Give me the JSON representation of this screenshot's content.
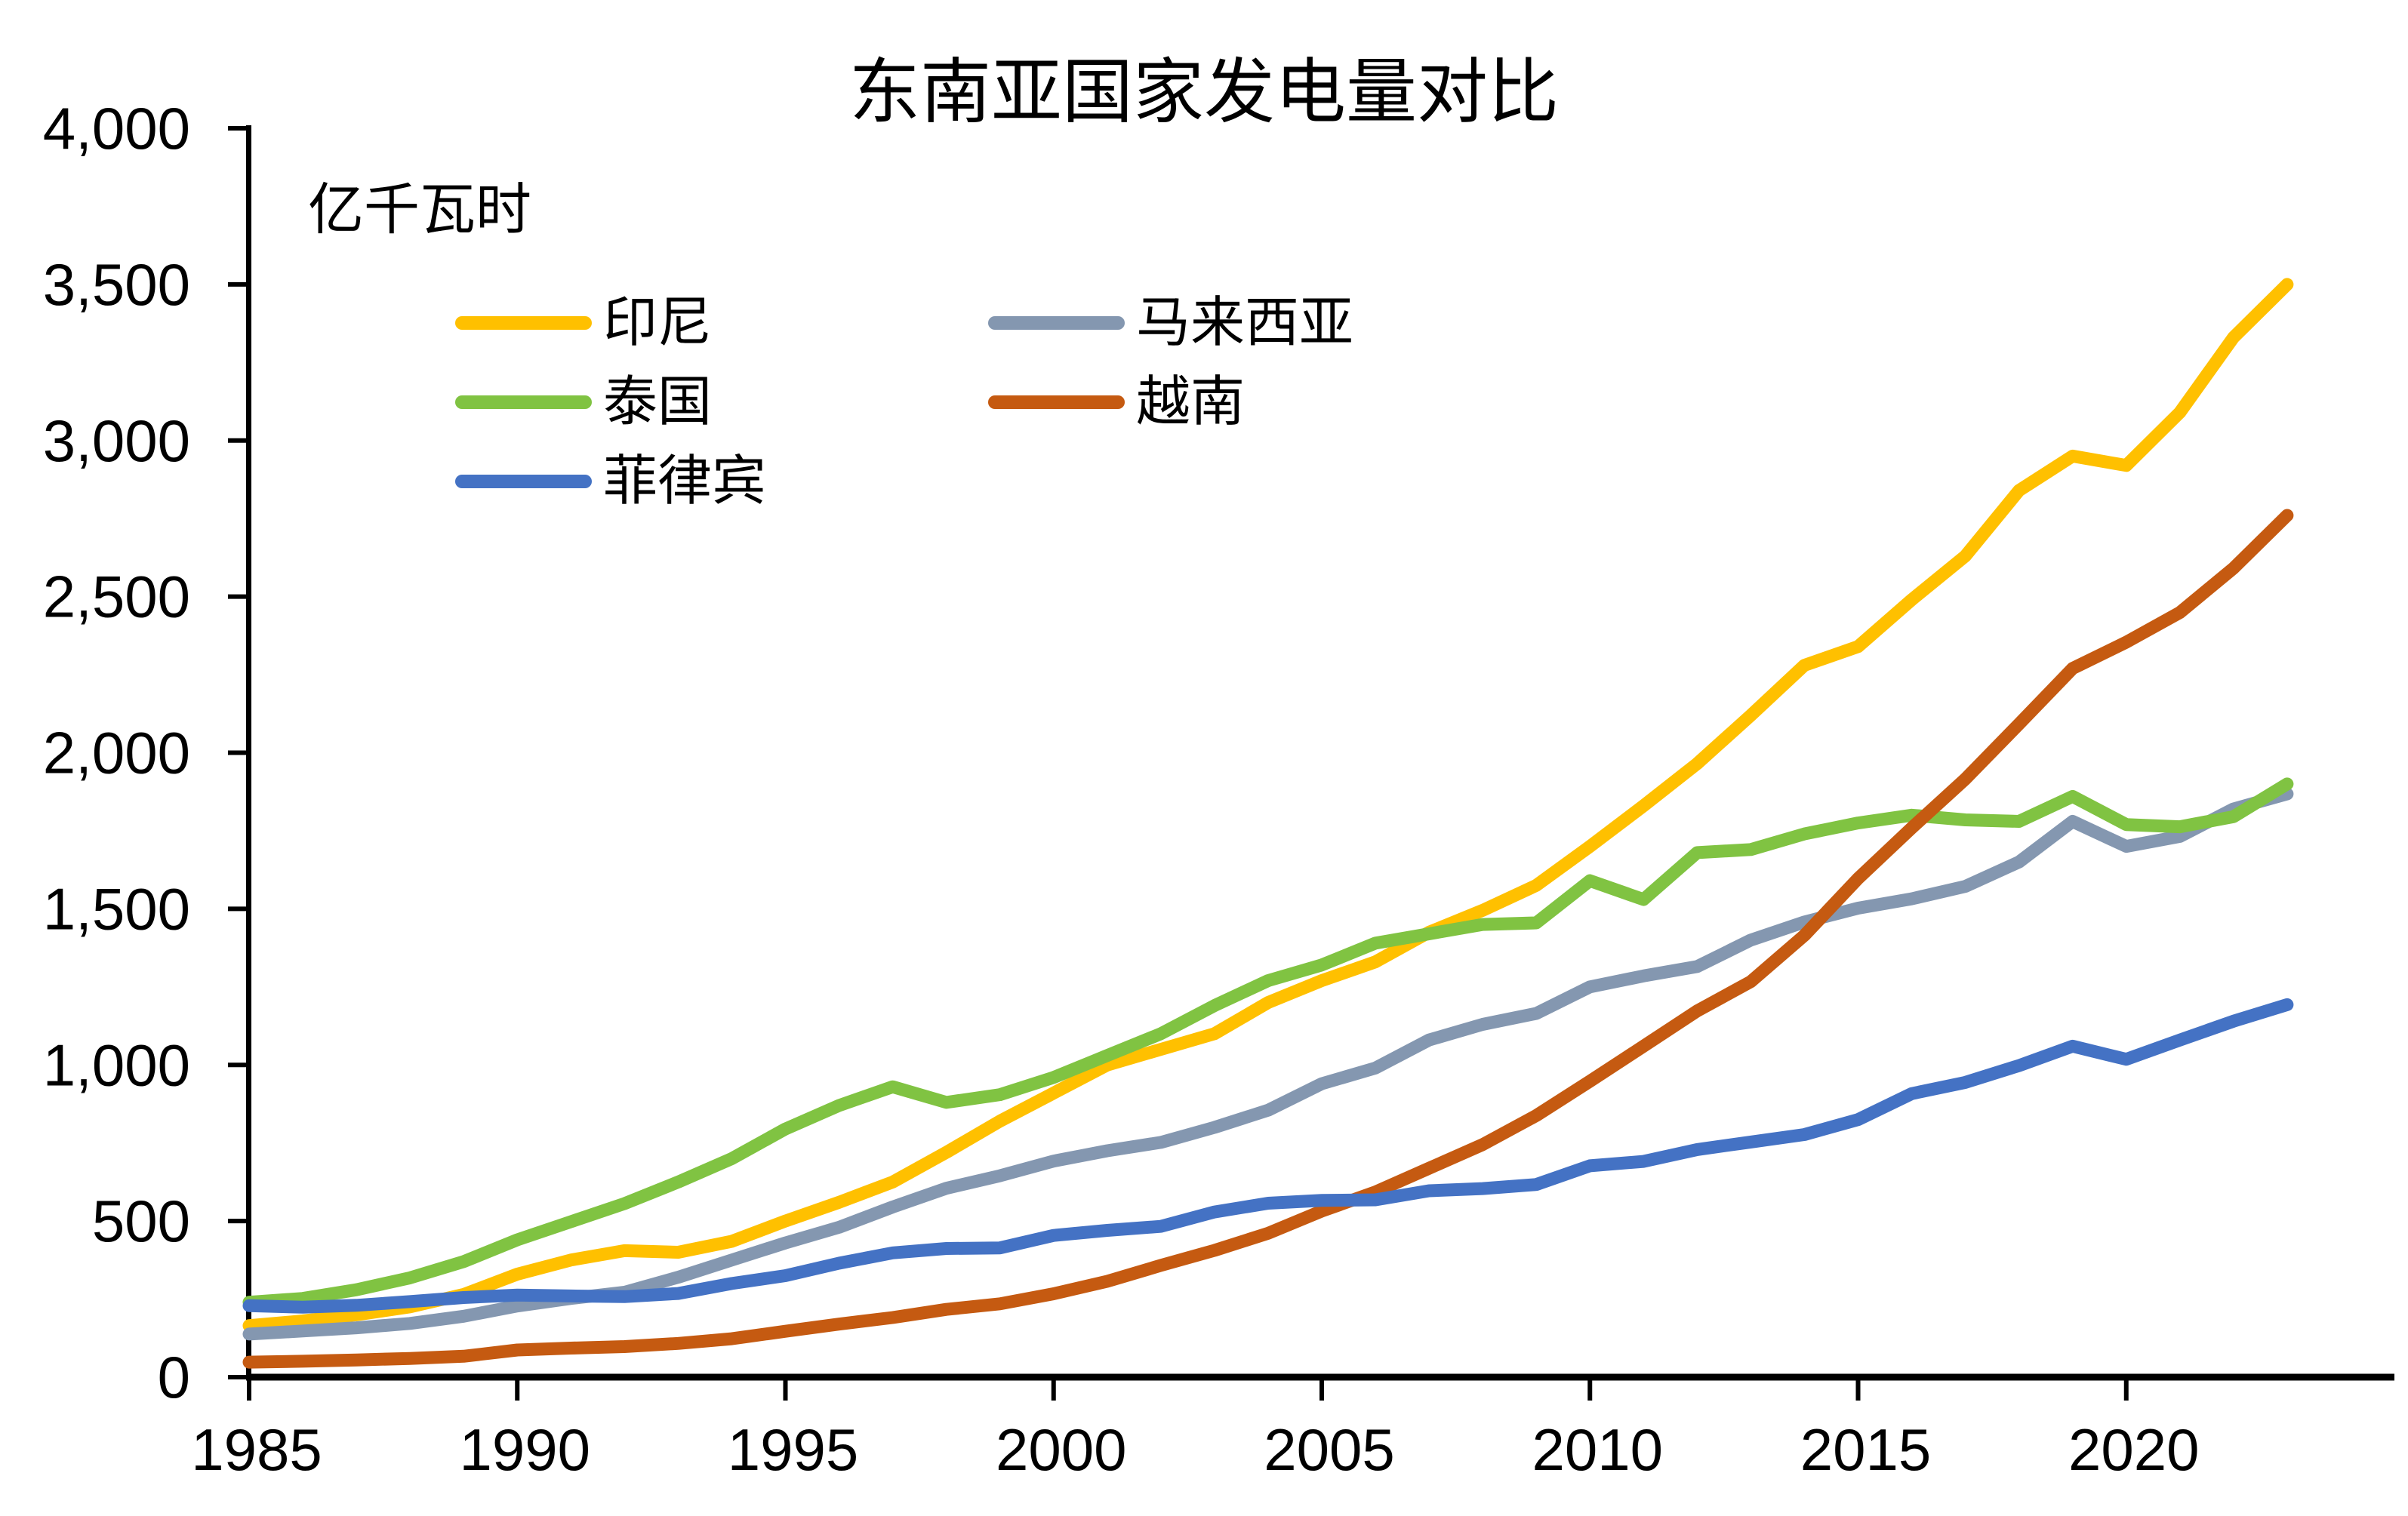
{
  "title": "东南亚国家发电量对比",
  "unit_label": "亿千瓦时",
  "legend": {
    "items": [
      {
        "label": "印尼",
        "color": "#FFC000",
        "col": 0,
        "row": 0
      },
      {
        "label": "马来西亚",
        "color": "#8497B0",
        "col": 1,
        "row": 0
      },
      {
        "label": "泰国",
        "color": "#80C342",
        "col": 0,
        "row": 1
      },
      {
        "label": "越南",
        "color": "#C55A11",
        "col": 1,
        "row": 1
      },
      {
        "label": "菲律宾",
        "color": "#4472C4",
        "col": 0,
        "row": 2
      }
    ]
  },
  "chart_data": {
    "type": "line",
    "title": "东南亚国家发电量对比",
    "ylabel": "亿千瓦时",
    "xlabel": "",
    "ylim": [
      0,
      4000
    ],
    "grid": false,
    "legend_position": "top-left-inside, two columns",
    "x": [
      1985,
      1986,
      1987,
      1988,
      1989,
      1990,
      1991,
      1992,
      1993,
      1994,
      1995,
      1996,
      1997,
      1998,
      1999,
      2000,
      2001,
      2002,
      2003,
      2004,
      2005,
      2006,
      2007,
      2008,
      2009,
      2010,
      2011,
      2012,
      2013,
      2014,
      2015,
      2016,
      2017,
      2018,
      2019,
      2020,
      2021,
      2022,
      2023
    ],
    "x_tick_labels": [
      "1985",
      "1990",
      "1995",
      "2000",
      "2005",
      "2010",
      "2015",
      "2020"
    ],
    "x_tick_years": [
      1985,
      1990,
      1995,
      2000,
      2005,
      2010,
      2015,
      2020
    ],
    "y_tick_values": [
      0,
      500,
      1000,
      1500,
      2000,
      2500,
      3000,
      3500,
      4000
    ],
    "y_tick_labels": [
      "0",
      "500",
      "1,000",
      "1,500",
      "2,000",
      "2,500",
      "3,000",
      "3,500",
      "4,000"
    ],
    "series": [
      {
        "name": "印尼",
        "color": "#FFC000",
        "values": [
          165,
          180,
          200,
          225,
          265,
          330,
          375,
          405,
          400,
          435,
          500,
          560,
          625,
          720,
          820,
          910,
          1000,
          1050,
          1100,
          1200,
          1270,
          1330,
          1425,
          1495,
          1575,
          1700,
          1830,
          1965,
          2120,
          2280,
          2340,
          2490,
          2630,
          2840,
          2950,
          2920,
          3090,
          3330,
          3500
        ]
      },
      {
        "name": "马来西亚",
        "color": "#8497B0",
        "values": [
          138,
          148,
          158,
          172,
          195,
          228,
          252,
          272,
          320,
          375,
          430,
          480,
          545,
          605,
          645,
          692,
          725,
          752,
          800,
          855,
          940,
          990,
          1080,
          1130,
          1165,
          1250,
          1285,
          1315,
          1400,
          1458,
          1502,
          1532,
          1572,
          1650,
          1780,
          1700,
          1732,
          1820,
          1868
        ]
      },
      {
        "name": "泰国",
        "color": "#80C342",
        "values": [
          240,
          252,
          280,
          318,
          370,
          440,
          498,
          556,
          625,
          700,
          795,
          870,
          930,
          880,
          905,
          960,
          1030,
          1100,
          1190,
          1270,
          1320,
          1390,
          1420,
          1450,
          1455,
          1590,
          1530,
          1680,
          1690,
          1740,
          1775,
          1800,
          1785,
          1780,
          1860,
          1770,
          1763,
          1795,
          1900
        ]
      },
      {
        "name": "越南",
        "color": "#C55A11",
        "values": [
          48,
          51,
          55,
          60,
          67,
          87,
          93,
          98,
          108,
          123,
          147,
          170,
          191,
          217,
          235,
          267,
          307,
          358,
          406,
          461,
          532,
          593,
          669,
          745,
          838,
          948,
          1060,
          1173,
          1267,
          1415,
          1597,
          1759,
          1916,
          2092,
          2270,
          2354,
          2449,
          2591,
          2760
        ]
      },
      {
        "name": "菲律宾",
        "color": "#4472C4",
        "values": [
          229,
          224,
          230,
          242,
          255,
          263,
          260,
          258,
          268,
          300,
          325,
          365,
          398,
          412,
          414,
          454,
          470,
          483,
          529,
          557,
          566,
          568,
          597,
          604,
          617,
          677,
          691,
          729,
          753,
          777,
          825,
          908,
          944,
          998,
          1060,
          1018,
          1080,
          1140,
          1193
        ]
      }
    ]
  }
}
